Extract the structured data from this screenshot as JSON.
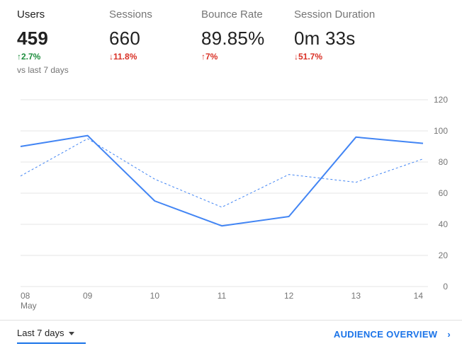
{
  "metrics": [
    {
      "label": "Users",
      "value": "459",
      "change": "2.7%",
      "direction": "up",
      "sub": "vs last 7 days"
    },
    {
      "label": "Sessions",
      "value": "660",
      "change": "11.8%",
      "direction": "down"
    },
    {
      "label": "Bounce Rate",
      "value": "89.85%",
      "change": "7%",
      "direction": "up-bad"
    },
    {
      "label": "Session Duration",
      "value": "0m 33s",
      "change": "51.7%",
      "direction": "down"
    }
  ],
  "arrows": {
    "up": "↑",
    "down": "↓"
  },
  "colors": {
    "primary": "#4285f4",
    "positive": "#1e8e3e",
    "negative": "#d93025",
    "link": "#1a73e8"
  },
  "chart_data": {
    "type": "line",
    "categories": [
      "08",
      "09",
      "10",
      "11",
      "12",
      "13",
      "14"
    ],
    "first_category_sublabel": "May",
    "series": [
      {
        "values": [
          90,
          97,
          55,
          39,
          45,
          96,
          92
        ],
        "style": "solid"
      },
      {
        "values": [
          71,
          95,
          69,
          51,
          72,
          67,
          82
        ],
        "style": "dashed"
      }
    ],
    "yticks": [
      0,
      20,
      40,
      60,
      80,
      100,
      120
    ],
    "ylim": [
      0,
      120
    ],
    "grid": true,
    "yaxis_side": "right"
  },
  "footer": {
    "date_range": "Last 7 days",
    "overview_link": "AUDIENCE OVERVIEW",
    "chevron": "›"
  }
}
